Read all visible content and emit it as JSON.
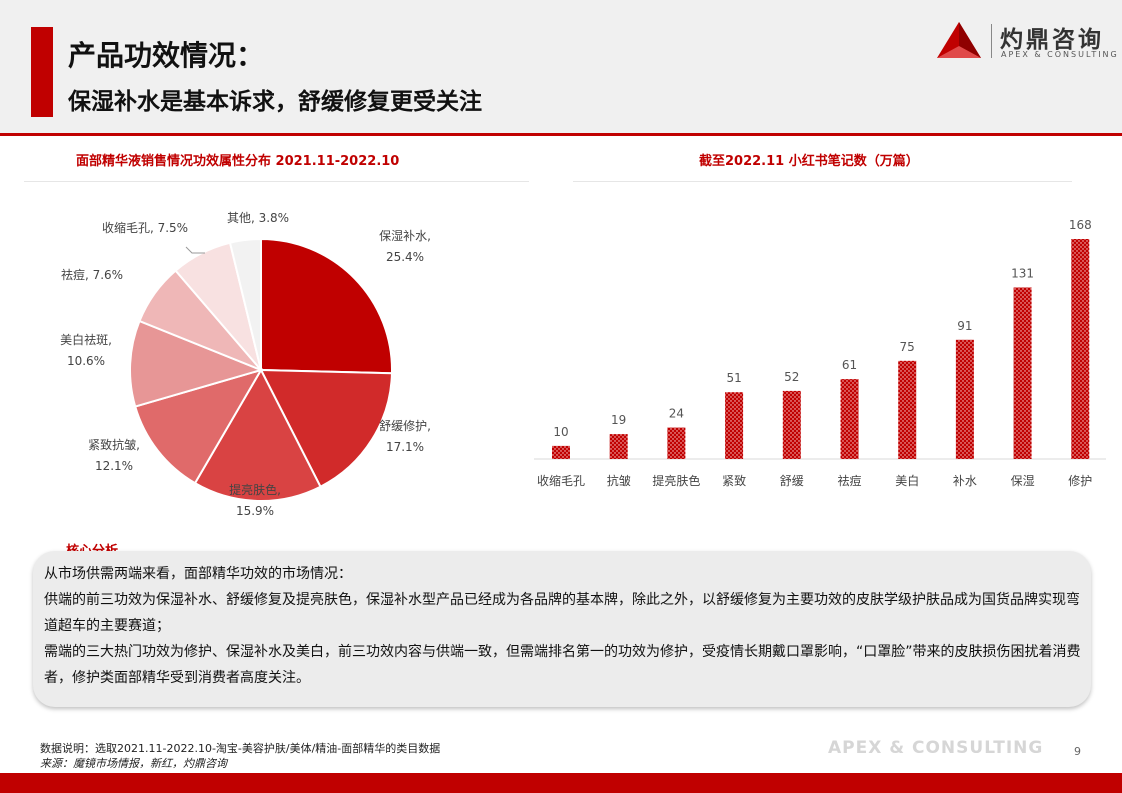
{
  "header": {
    "title": "产品功效情况：",
    "subtitle": "保湿补水是基本诉求，舒缓修复更受关注"
  },
  "logo": {
    "name_cn": "灼鼎咨询",
    "name_en": "APEX & CONSULTING"
  },
  "colors": {
    "accent": "#c00000",
    "pie": [
      "#c00000",
      "#d12a2a",
      "#d94343",
      "#e06a6a",
      "#e79696",
      "#efb7b7",
      "#f8e1e1",
      "#f2f2f2"
    ]
  },
  "chart_data": [
    {
      "type": "pie",
      "title": "面部精华液销售情况功效属性分布 2021.11-2022.10",
      "slices": [
        {
          "name": "保湿补水",
          "value": 25.4,
          "label": "25.4%"
        },
        {
          "name": "舒缓修护",
          "value": 17.1,
          "label": "17.1%"
        },
        {
          "name": "提亮肤色",
          "value": 15.9,
          "label": "15.9%"
        },
        {
          "name": "紧致抗皱",
          "value": 12.1,
          "label": "12.1%"
        },
        {
          "name": "美白祛斑",
          "value": 10.6,
          "label": "10.6%"
        },
        {
          "name": "祛痘",
          "value": 7.6,
          "label": "7.6%"
        },
        {
          "name": "收缩毛孔",
          "value": 7.5,
          "label": "7.5%"
        },
        {
          "name": "其他",
          "value": 3.8,
          "label": "3.8%"
        }
      ]
    },
    {
      "type": "bar",
      "title": "截至2022.11 小红书笔记数（万篇）",
      "categories": [
        "收缩毛孔",
        "抗皱",
        "提亮肤色",
        "紧致",
        "舒缓",
        "祛痘",
        "美白",
        "补水",
        "保湿",
        "修护"
      ],
      "values": [
        10,
        19,
        24,
        51,
        52,
        61,
        75,
        91,
        131,
        168
      ],
      "ylim": [
        0,
        168
      ]
    }
  ],
  "core": {
    "title": "核心分析",
    "lines": [
      "从市场供需两端来看，面部精华功效的市场情况：",
      "供端的前三功效为保湿补水、舒缓修复及提亮肤色，保湿补水型产品已经成为各品牌的基本牌，除此之外，以舒缓修复为主要功效的皮肤学级护肤品成为国货品牌实现弯道超车的主要赛道；",
      "需端的三大热门功效为修护、保湿补水及美白，前三功效内容与供端一致，但需端排名第一的功效为修护，受疫情长期戴口罩影响，“口罩脸”带来的皮肤损伤困扰着消费者，修护类面部精华受到消费者高度关注。"
    ]
  },
  "footer": {
    "data_note": "数据说明：选取2021.11-2022.10-淘宝-美容护肤/美体/精油-面部精华的类目数据",
    "source": "来源：魔镜市场情报，新红，灼鼎咨询",
    "watermark": "APEX & CONSULTING",
    "page_number": "9"
  }
}
